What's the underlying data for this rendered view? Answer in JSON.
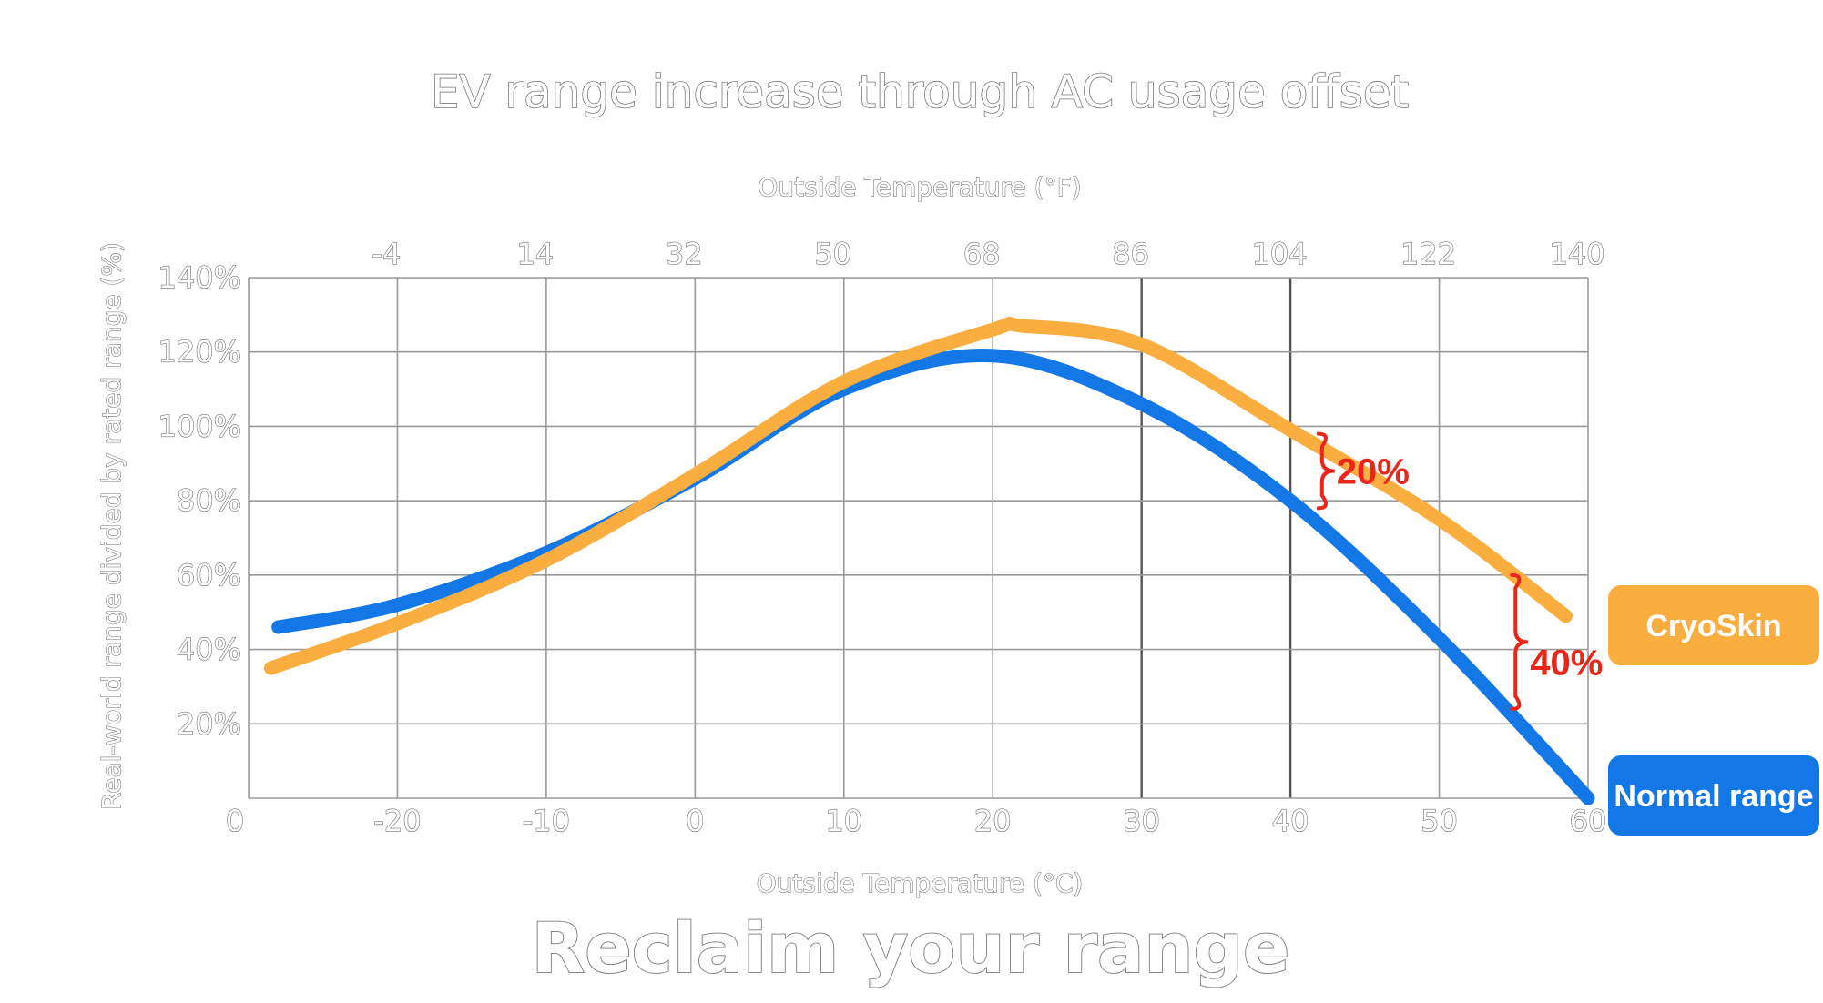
{
  "chart_data": {
    "type": "line",
    "title": "EV range increase through AC usage offset",
    "tagline": "Reclaim your range",
    "x_top_label": "Outside Temperature (°F)",
    "x_bottom_label": "Outside Temperature (°C)",
    "ylabel": "Real-world range divided by rated range (%)",
    "x_bottom_ticks": [
      "0",
      "-20",
      "-10",
      "0",
      "10",
      "20",
      "30",
      "40",
      "50",
      "60"
    ],
    "x_top_ticks": [
      "-4",
      "14",
      "32",
      "50",
      "68",
      "86",
      "104",
      "122",
      "140"
    ],
    "y_ticks": [
      "140%",
      "120%",
      "100%",
      "80%",
      "60%",
      "40%",
      "20%"
    ],
    "xlim": [
      -30,
      60
    ],
    "ylim": [
      0,
      140
    ],
    "grid": true,
    "series": [
      {
        "name": "CryoSkin",
        "color": "#F9AE3F",
        "x": [
          -28.5,
          -20,
          -10,
          0,
          10,
          20,
          22,
          30,
          40,
          50,
          58.5
        ],
        "y": [
          35,
          47,
          64,
          87,
          112,
          126,
          127,
          122,
          99,
          75,
          49
        ]
      },
      {
        "name": "Normal range",
        "color": "#1477E6",
        "x": [
          -28,
          -20,
          -10,
          0,
          10,
          20,
          30,
          40,
          50,
          60
        ],
        "y": [
          46,
          52,
          66,
          86,
          110,
          119,
          106,
          80,
          43,
          0
        ]
      }
    ],
    "annotations": [
      {
        "text": "20%",
        "x": 42,
        "y_top": 98,
        "y_bottom": 78
      },
      {
        "text": "40%",
        "x": 55,
        "y_top": 60,
        "y_bottom": 24
      }
    ],
    "legend": {
      "placement": "right",
      "items": [
        {
          "label": "CryoSkin",
          "color": "#F9AE3F"
        },
        {
          "label": "Normal range",
          "color": "#1477E6"
        }
      ]
    },
    "annotation_color": "#E8271A"
  }
}
